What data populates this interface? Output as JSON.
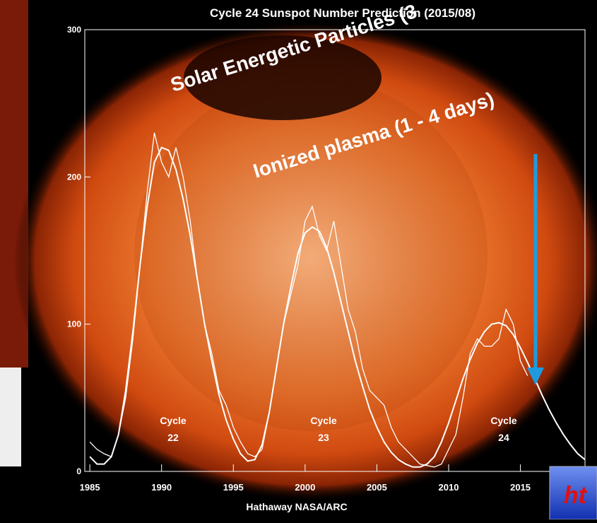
{
  "chart_data": {
    "type": "line",
    "title": "Cycle 24 Sunspot Number Prediction (2015/08)",
    "credit": "Hathaway NASA/ARC",
    "overlay_texts": [
      "Solar Energetic Particles (3",
      "Ionized plasma (1 - 4 days)"
    ],
    "corner_text": "ht",
    "cycle_labels": [
      {
        "line1": "Cycle",
        "line2": "22"
      },
      {
        "line1": "Cycle",
        "line2": "23"
      },
      {
        "line1": "Cycle",
        "line2": "24"
      }
    ],
    "xlim": [
      1984.65,
      2019.5
    ],
    "ylim": [
      0,
      300
    ],
    "xticks": [
      1985,
      1990,
      1995,
      2000,
      2005,
      2010,
      2015
    ],
    "yticks": [
      0,
      100,
      200,
      300
    ],
    "x": [
      1985,
      1985.5,
      1986,
      1986.5,
      1987,
      1987.5,
      1988,
      1988.5,
      1989,
      1989.5,
      1990,
      1990.5,
      1991,
      1991.5,
      1992,
      1992.5,
      1993,
      1993.5,
      1994,
      1994.5,
      1995,
      1995.5,
      1996,
      1996.5,
      1997,
      1997.5,
      1998,
      1998.5,
      1999,
      1999.5,
      2000,
      2000.5,
      2001,
      2001.5,
      2002,
      2002.5,
      2003,
      2003.5,
      2004,
      2004.5,
      2005,
      2005.5,
      2006,
      2006.5,
      2007,
      2007.5,
      2008,
      2008.5,
      2009,
      2009.5,
      2010,
      2010.5,
      2011,
      2011.5,
      2012,
      2012.5,
      2013,
      2013.5,
      2014,
      2014.5,
      2015,
      2015.5,
      2016,
      2016.5,
      2017,
      2017.5,
      2018,
      2018.5,
      2019,
      2019.5
    ],
    "series": [
      {
        "color": "#ffffff",
        "width": 1.3,
        "values": [
          20,
          15,
          12,
          10,
          25,
          50,
          90,
          140,
          190,
          230,
          210,
          200,
          220,
          200,
          170,
          130,
          100,
          80,
          55,
          45,
          30,
          20,
          12,
          10,
          15,
          40,
          70,
          100,
          120,
          140,
          170,
          180,
          160,
          150,
          170,
          140,
          110,
          95,
          70,
          55,
          50,
          45,
          30,
          20,
          15,
          10,
          5,
          4,
          3,
          5,
          15,
          25,
          50,
          80,
          90,
          85,
          85,
          90,
          110,
          100,
          75,
          65,
          null,
          null,
          null,
          null,
          null,
          null,
          null,
          null
        ]
      },
      {
        "color": "#ffffff",
        "width": 2,
        "values": [
          10,
          5,
          5,
          10,
          25,
          55,
          95,
          140,
          180,
          210,
          220,
          218,
          205,
          185,
          160,
          130,
          100,
          75,
          52,
          35,
          22,
          12,
          7,
          8,
          18,
          40,
          70,
          100,
          125,
          148,
          162,
          166,
          163,
          152,
          135,
          115,
          95,
          75,
          58,
          42,
          30,
          20,
          13,
          8,
          5,
          3,
          3,
          5,
          10,
          20,
          33,
          48,
          63,
          76,
          87,
          95,
          100,
          101,
          99,
          93,
          84,
          74,
          63,
          52,
          42,
          33,
          25,
          18,
          12,
          8
        ]
      }
    ]
  }
}
